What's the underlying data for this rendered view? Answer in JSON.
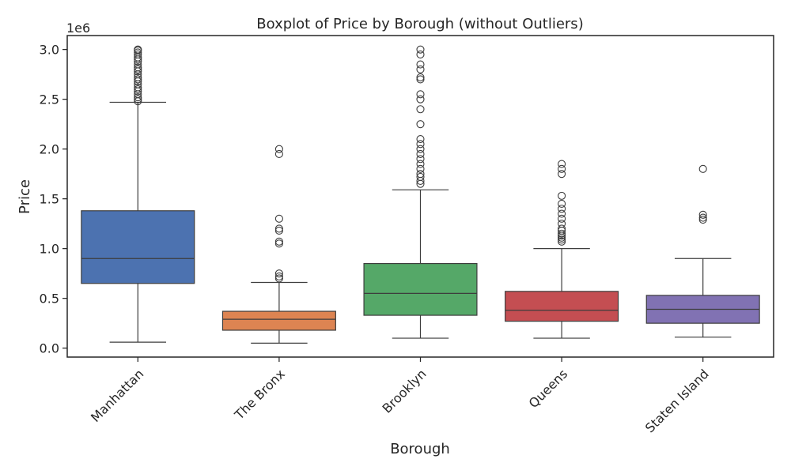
{
  "chart_data": {
    "type": "box",
    "title": "Boxplot of Price by Borough (without Outliers)",
    "xlabel": "Borough",
    "ylabel": "Price",
    "y_offset_label": "1e6",
    "ylim": [
      -0.09,
      3.14
    ],
    "yticks": [
      0.0,
      0.5,
      1.0,
      1.5,
      2.0,
      2.5,
      3.0
    ],
    "ytick_labels": [
      "0.0",
      "0.5",
      "1.0",
      "1.5",
      "2.0",
      "2.5",
      "3.0"
    ],
    "unit_multiplier": 1000000,
    "grid": false,
    "categories": [
      "Manhattan",
      "The Bronx",
      "Brooklyn",
      "Queens",
      "Staten Island"
    ],
    "boxes": [
      {
        "category": "Manhattan",
        "color": "#4c72b0",
        "whisker_low": 0.06,
        "q1": 0.65,
        "median": 0.9,
        "q3": 1.38,
        "whisker_high": 2.47,
        "outliers": [
          2.48,
          2.5,
          2.52,
          2.55,
          2.58,
          2.6,
          2.62,
          2.65,
          2.68,
          2.7,
          2.72,
          2.75,
          2.78,
          2.8,
          2.82,
          2.85,
          2.88,
          2.9,
          2.92,
          2.95,
          2.97,
          2.99,
          3.0
        ]
      },
      {
        "category": "The Bronx",
        "color": "#dd8452",
        "whisker_low": 0.05,
        "q1": 0.18,
        "median": 0.29,
        "q3": 0.37,
        "whisker_high": 0.66,
        "outliers": [
          0.7,
          0.72,
          0.75,
          1.05,
          1.07,
          1.18,
          1.2,
          1.3,
          1.95,
          2.0
        ]
      },
      {
        "category": "Brooklyn",
        "color": "#55a868",
        "whisker_low": 0.1,
        "q1": 0.33,
        "median": 0.55,
        "q3": 0.85,
        "whisker_high": 1.59,
        "outliers": [
          1.65,
          1.68,
          1.72,
          1.75,
          1.8,
          1.85,
          1.9,
          1.95,
          2.0,
          2.05,
          2.1,
          2.25,
          2.4,
          2.5,
          2.55,
          2.7,
          2.72,
          2.8,
          2.85,
          2.95,
          3.0
        ]
      },
      {
        "category": "Queens",
        "color": "#c44e52",
        "whisker_low": 0.1,
        "q1": 0.27,
        "median": 0.38,
        "q3": 0.57,
        "whisker_high": 1.0,
        "outliers": [
          1.07,
          1.09,
          1.11,
          1.13,
          1.15,
          1.18,
          1.2,
          1.25,
          1.3,
          1.35,
          1.4,
          1.45,
          1.53,
          1.75,
          1.8,
          1.85
        ]
      },
      {
        "category": "Staten Island",
        "color": "#8172b3",
        "whisker_low": 0.11,
        "q1": 0.25,
        "median": 0.39,
        "q3": 0.53,
        "whisker_high": 0.9,
        "outliers": [
          1.29,
          1.31,
          1.34,
          1.8
        ]
      }
    ]
  }
}
